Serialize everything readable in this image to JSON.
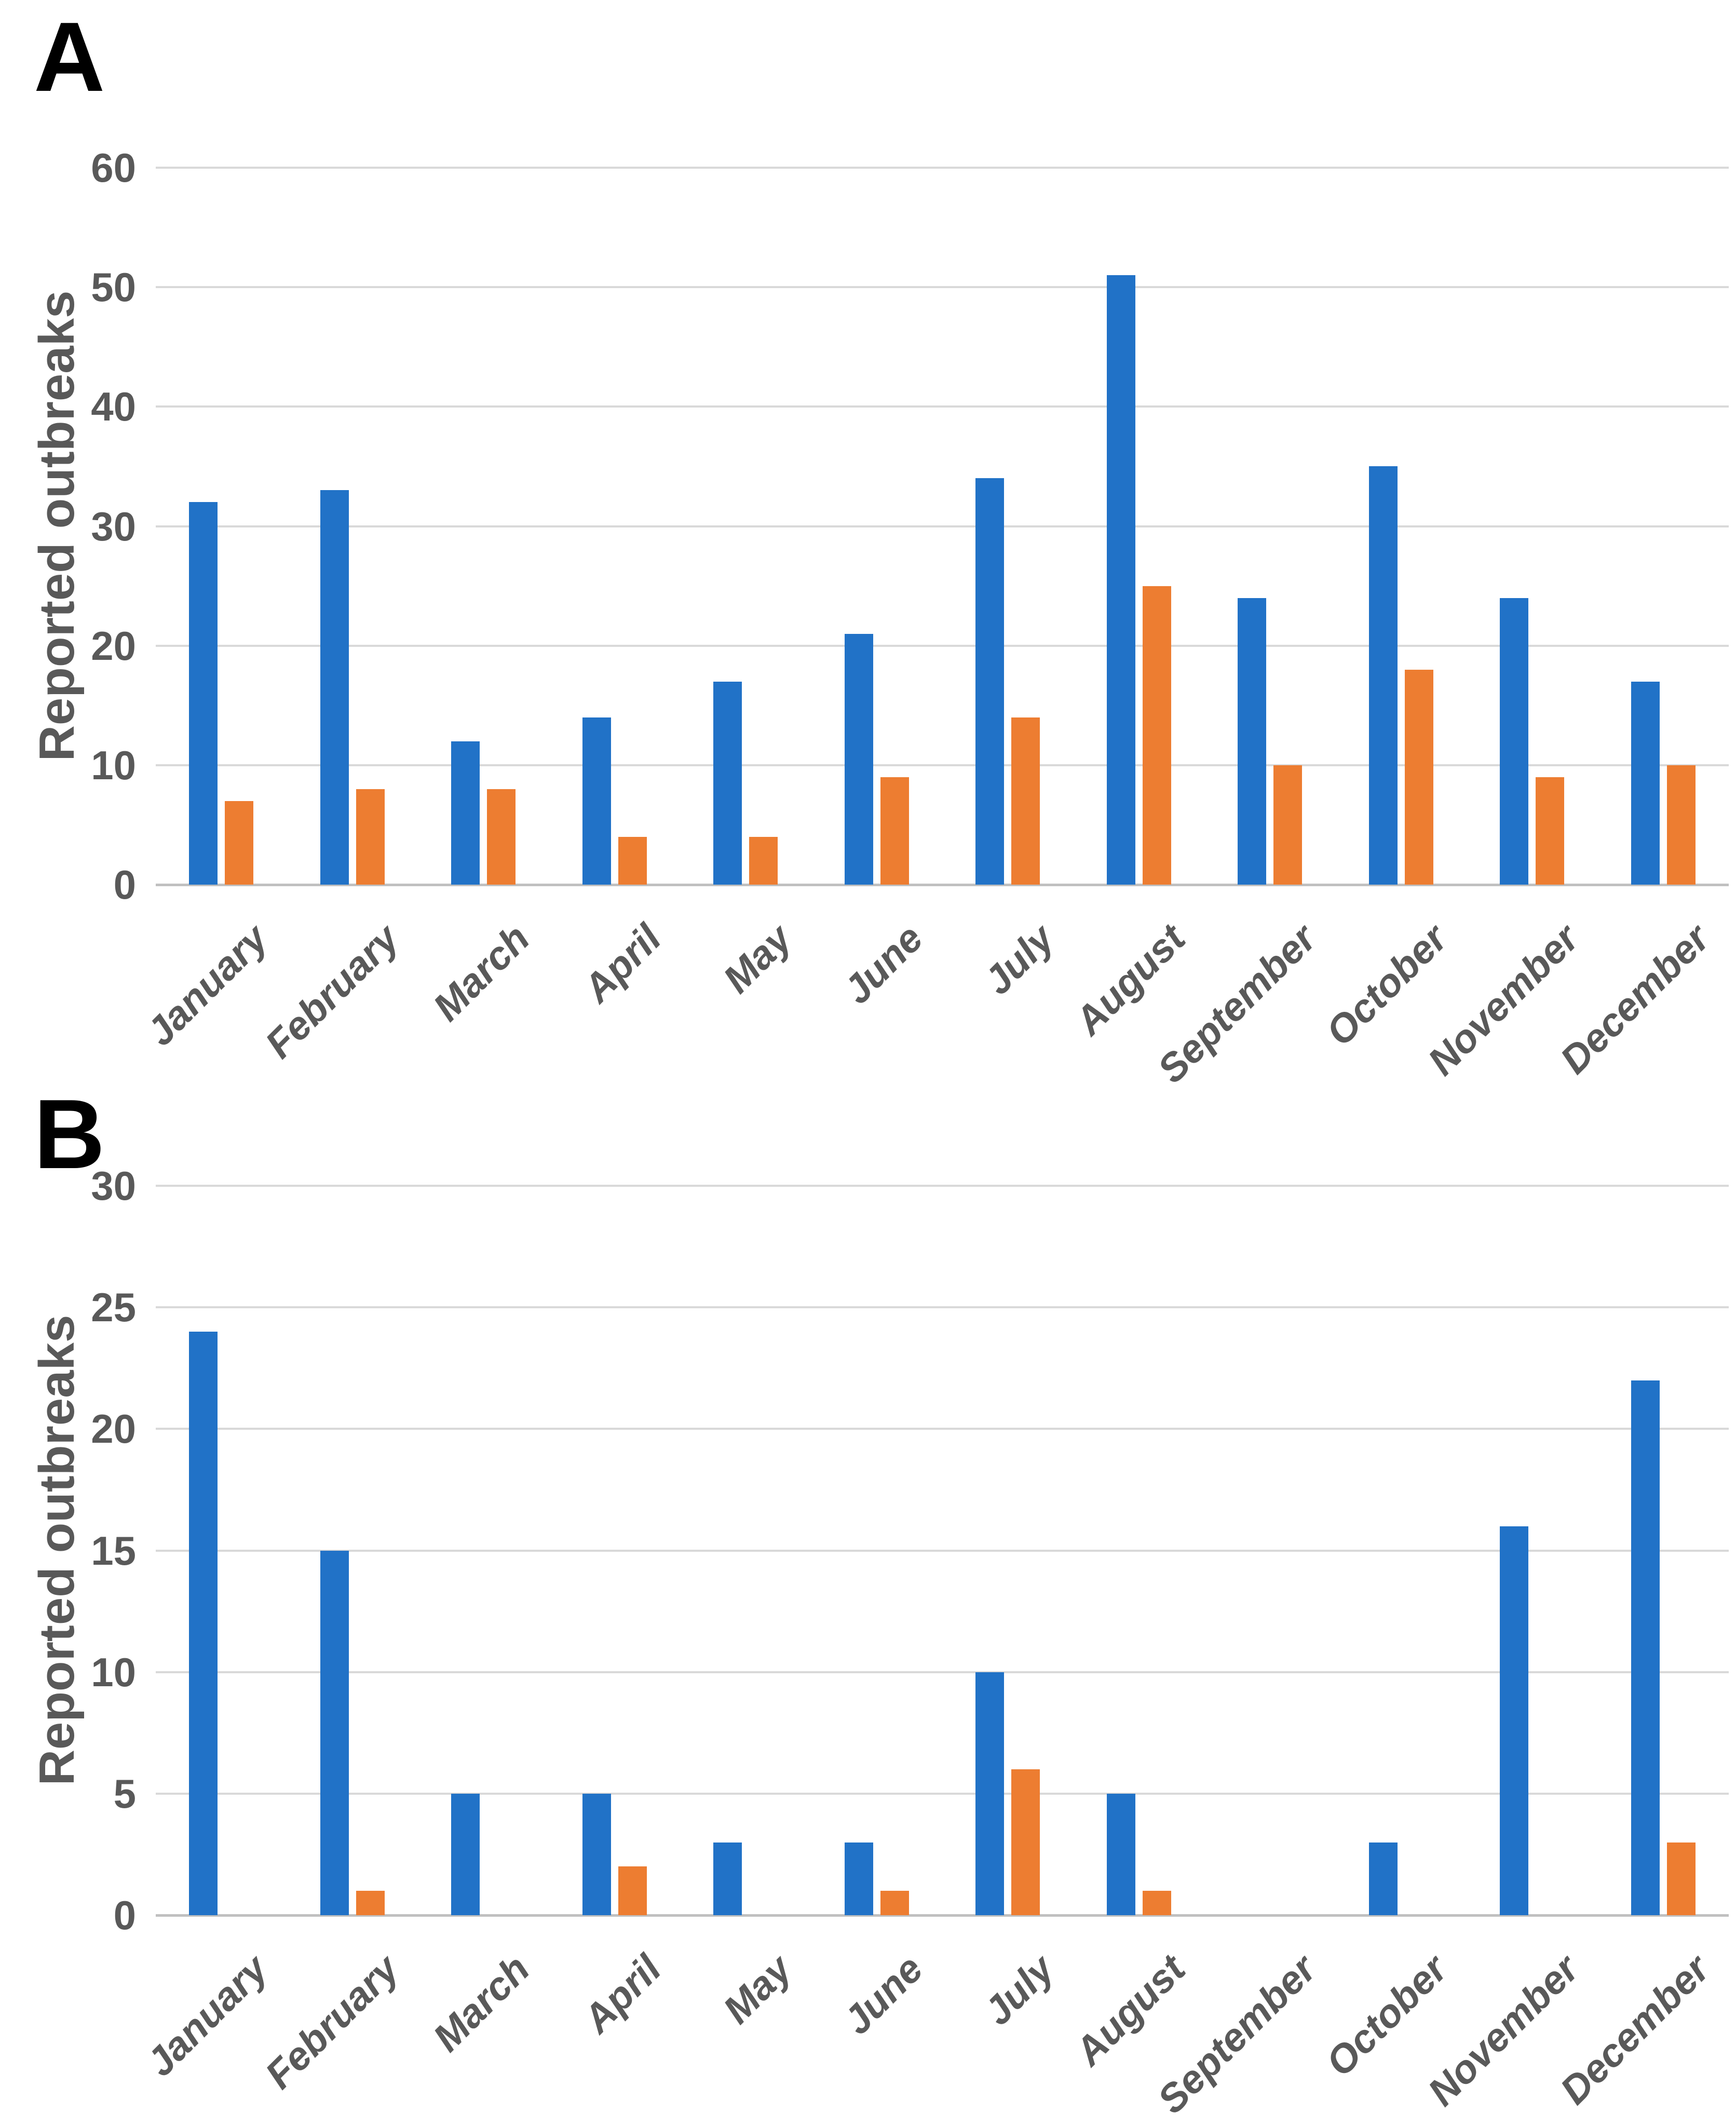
{
  "colors": {
    "blue": "#2172C7",
    "orange": "#ED7D31",
    "grid": "#D9D9D9",
    "axis_zero_line": "#C0C0C0",
    "label_gray": "#595959",
    "panel_letter": "#000000"
  },
  "chart_data": [
    {
      "type": "bar",
      "panel_label": "A",
      "title": "",
      "xlabel": "",
      "ylabel": "Reported outbreaks",
      "ylim": [
        0,
        60
      ],
      "yticks": [
        0,
        10,
        20,
        30,
        40,
        50,
        60
      ],
      "grid": true,
      "legend_position": "none",
      "categories": [
        "January",
        "February",
        "March",
        "April",
        "May",
        "June",
        "July",
        "August",
        "September",
        "October",
        "November",
        "December"
      ],
      "series": [
        {
          "name": "blue-series",
          "color": "#2172C7",
          "values": [
            32,
            33,
            12,
            14,
            17,
            21,
            34,
            51,
            24,
            35,
            24,
            17
          ]
        },
        {
          "name": "orange-series",
          "color": "#ED7D31",
          "values": [
            7,
            8,
            8,
            4,
            4,
            9,
            14,
            25,
            10,
            18,
            9,
            10
          ]
        }
      ]
    },
    {
      "type": "bar",
      "panel_label": "B",
      "title": "",
      "xlabel": "",
      "ylabel": "Reported outbreaks",
      "ylim": [
        0,
        30
      ],
      "yticks": [
        0,
        5,
        10,
        15,
        20,
        25,
        30
      ],
      "grid": true,
      "legend_position": "none",
      "categories": [
        "January",
        "February",
        "March",
        "April",
        "May",
        "June",
        "July",
        "August",
        "September",
        "October",
        "November",
        "December"
      ],
      "series": [
        {
          "name": "blue-series",
          "color": "#2172C7",
          "values": [
            24,
            15,
            5,
            5,
            3,
            3,
            10,
            5,
            0,
            3,
            16,
            22
          ]
        },
        {
          "name": "orange-series",
          "color": "#ED7D31",
          "values": [
            0,
            1,
            0,
            2,
            0,
            1,
            6,
            1,
            0,
            0,
            0,
            3
          ]
        }
      ]
    }
  ]
}
